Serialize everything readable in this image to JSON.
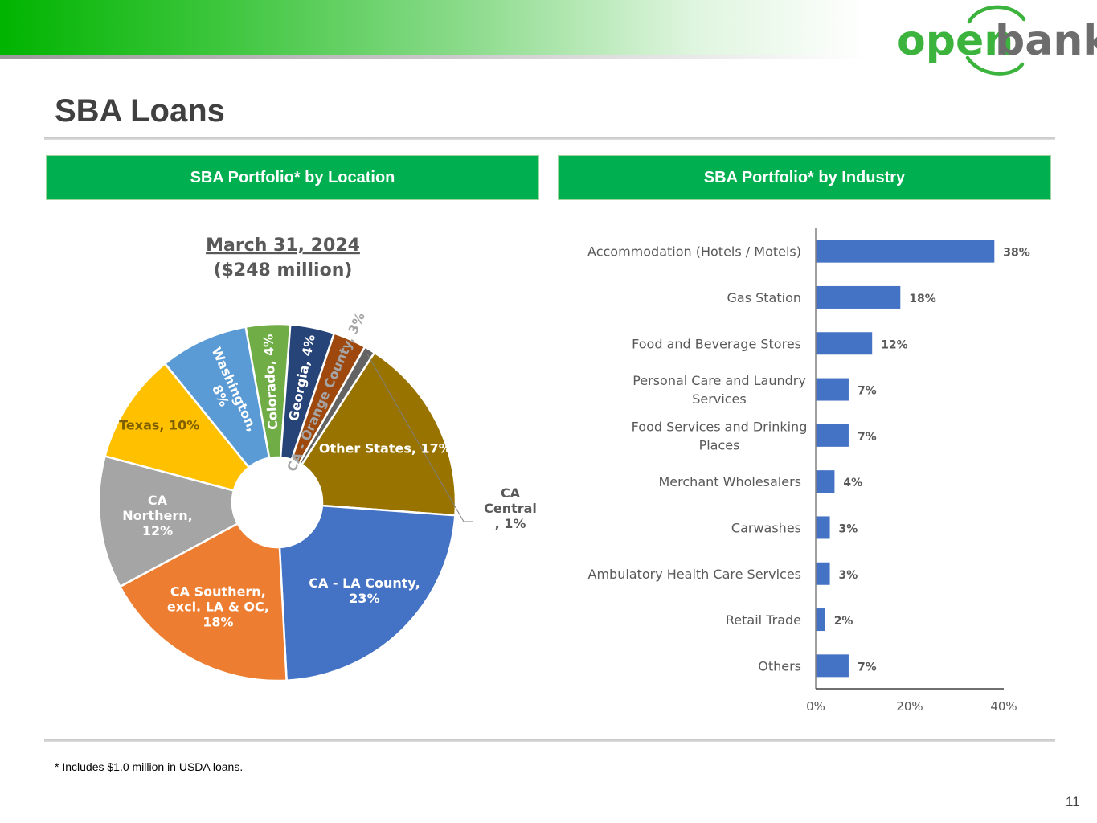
{
  "brand": {
    "logo_open": "open",
    "logo_bank": "bank",
    "green": "#3cb33c",
    "gray": "#6d6d6d"
  },
  "page": {
    "title": "SBA Loans",
    "footnote": "* Includes $1.0 million in USDA loans.",
    "number": "11"
  },
  "panels": {
    "location_header": "SBA Portfolio* by Location",
    "industry_header": "SBA Portfolio* by Industry"
  },
  "chart_data": [
    {
      "type": "pie",
      "title": "March 31, 2024",
      "subtitle": "($248 million)",
      "donut": true,
      "slices": [
        {
          "label": "Texas, 10%",
          "value": 10,
          "color": "#ffc000",
          "text_color": "#7f6000"
        },
        {
          "label": "Washington, 8%",
          "value": 8,
          "color": "#5b9bd5",
          "text_color": "#ffffff"
        },
        {
          "label": "Colorado, 4%",
          "value": 4,
          "color": "#70ad47",
          "text_color": "#ffffff"
        },
        {
          "label": "Georgia, 4%",
          "value": 4,
          "color": "#264478",
          "text_color": "#ffffff"
        },
        {
          "label": "CA - Orange County, 3%",
          "value": 3,
          "color": "#9e480e",
          "text_color": "#a5a5a5"
        },
        {
          "label": "CA Central, 1%",
          "value": 1,
          "color": "#636363",
          "text_color": "#595959"
        },
        {
          "label": "Other States, 17%",
          "value": 17,
          "color": "#997300",
          "text_color": "#ffffff"
        },
        {
          "label": "CA - LA County, 23%",
          "value": 23,
          "color": "#4472c4",
          "text_color": "#ffffff"
        },
        {
          "label": "CA Southern, excl. LA & OC, 18%",
          "value": 18,
          "color": "#ed7d31",
          "text_color": "#ffffff"
        },
        {
          "label": "CA Northern, 12%",
          "value": 12,
          "color": "#a5a5a5",
          "text_color": "#ffffff"
        }
      ]
    },
    {
      "type": "bar",
      "orientation": "horizontal",
      "categories": [
        "Accommodation (Hotels / Motels)",
        "Gas Station",
        "Food and Beverage Stores",
        "Personal Care and Laundry Services",
        "Food Services and Drinking Places",
        "Merchant Wholesalers",
        "Carwashes",
        "Ambulatory Health Care Services",
        "Retail Trade",
        "Others"
      ],
      "values": [
        38,
        18,
        12,
        7,
        7,
        4,
        3,
        3,
        2,
        7
      ],
      "value_labels": [
        "38%",
        "18%",
        "12%",
        "7%",
        "7%",
        "4%",
        "3%",
        "3%",
        "2%",
        "7%"
      ],
      "xticks": [
        "0%",
        "20%",
        "40%"
      ],
      "xlim": [
        0,
        40
      ],
      "bar_color": "#4472c4"
    }
  ]
}
